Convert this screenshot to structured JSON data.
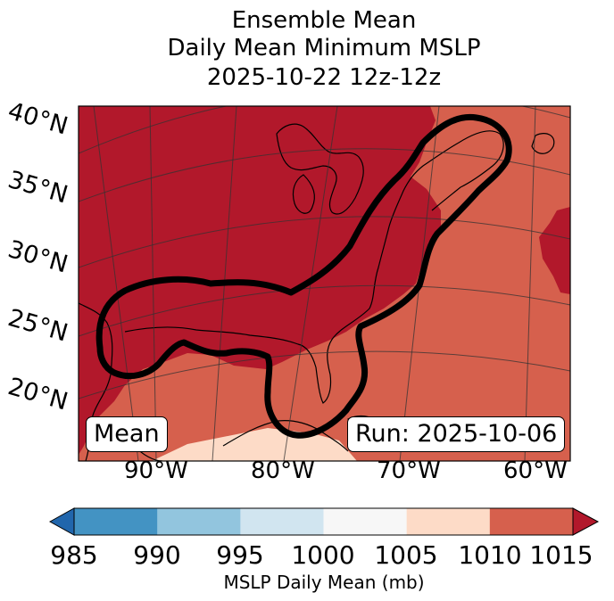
{
  "title": {
    "line1": "Ensemble Mean",
    "line2": "Daily Mean Minimum MSLP",
    "line3": "2025-10-22 12z-12z"
  },
  "map": {
    "lat_labels": [
      "40°N",
      "35°N",
      "30°N",
      "25°N",
      "20°N"
    ],
    "lon_labels": [
      "90°W",
      "80°W",
      "70°W",
      "60°W"
    ],
    "label_box": "Mean",
    "run_box": "Run: 2025-10-06"
  },
  "colorbar": {
    "label": "MSLP Daily Mean (mb)",
    "ticks": [
      "985",
      "990",
      "995",
      "1000",
      "1005",
      "1010",
      "1015"
    ],
    "bin_colors": [
      "#4393c3",
      "#92c5de",
      "#d1e5f0",
      "#f7f7f7",
      "#fddbc7",
      "#d6604d"
    ],
    "under_color": "#2166ac",
    "over_color": "#b2182b"
  },
  "colors": {
    "low_pressure": "#b2182b",
    "mid_pressure": "#d6604d",
    "high_pressure": "#fddbc7"
  }
}
